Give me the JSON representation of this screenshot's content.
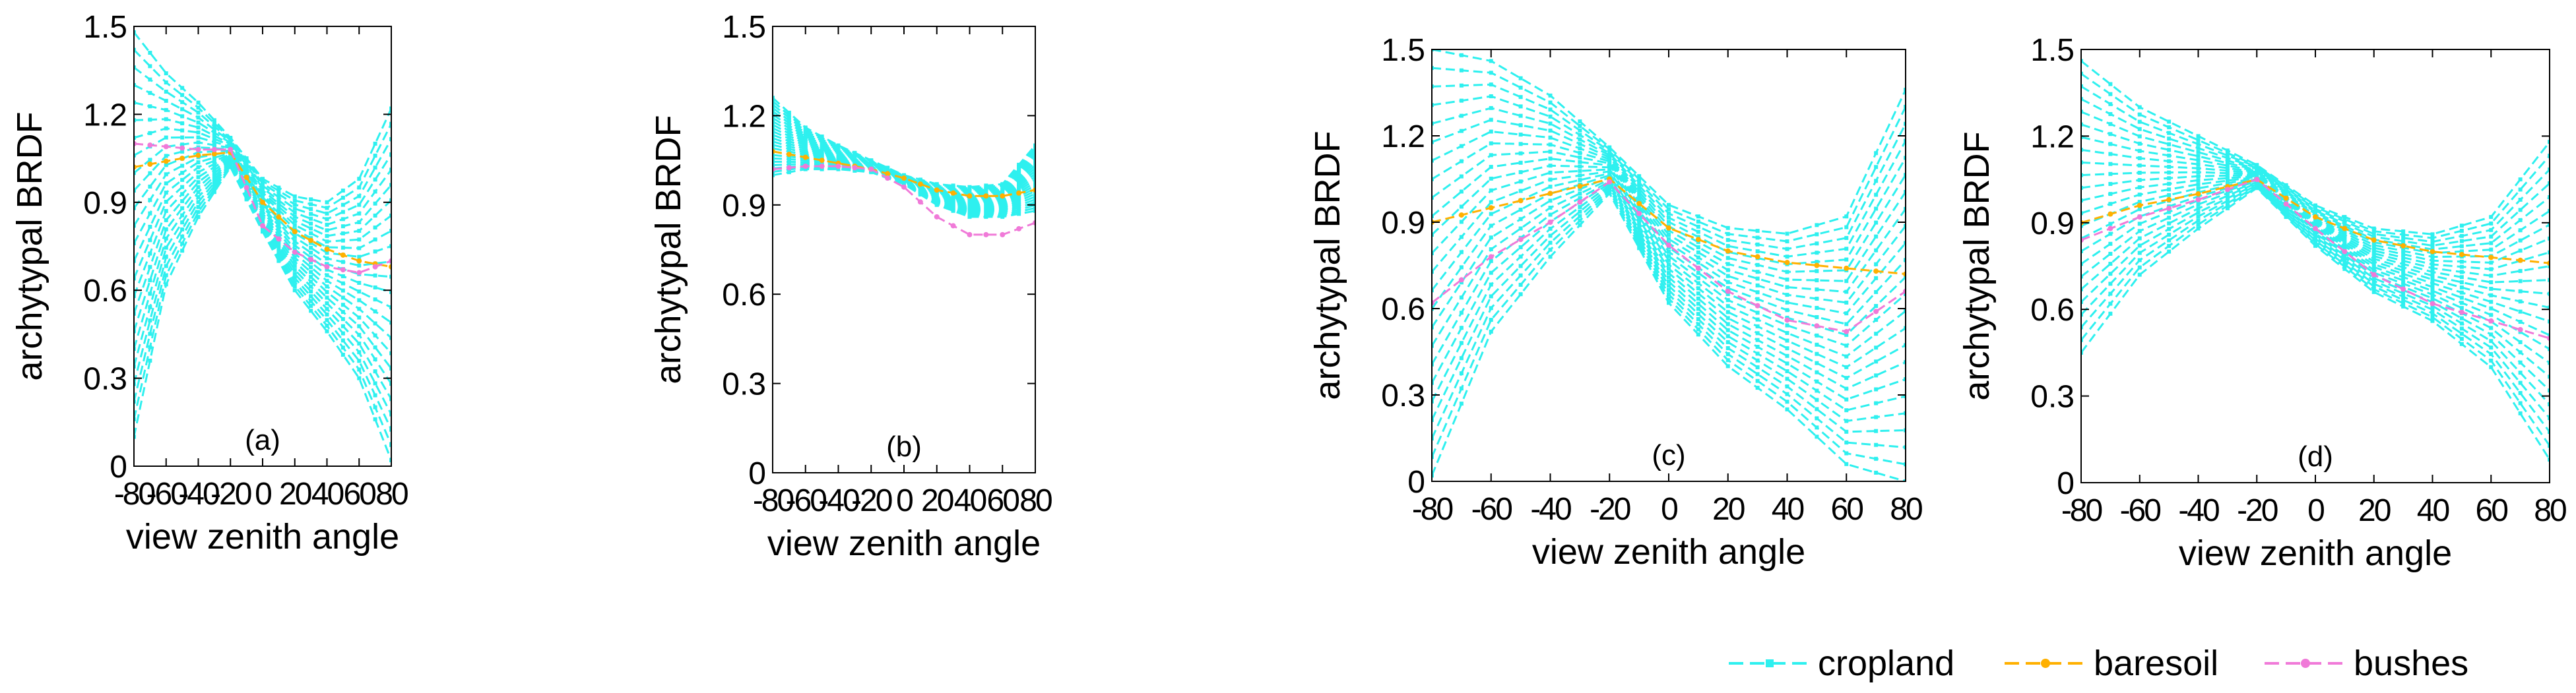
{
  "figure": {
    "legend": [
      {
        "name": "cropland",
        "color": "#2ef0ef",
        "marker": "square"
      },
      {
        "name": "baresoil",
        "color": "#ffb000",
        "marker": "dot"
      },
      {
        "name": "bushes",
        "color": "#f07ad8",
        "marker": "dot"
      }
    ]
  },
  "chart_data": [
    {
      "type": "line",
      "panel_label": "(a)",
      "xlabel": "view zenith angle",
      "ylabel": "archytypal BRDF",
      "xlim": [
        -80,
        80
      ],
      "ylim": [
        0,
        1.5
      ],
      "xticks": [
        -80,
        -60,
        -40,
        -20,
        0,
        20,
        40,
        60,
        80
      ],
      "yticks": [
        0,
        0.3,
        0.6,
        0.9,
        1.2,
        1.5
      ],
      "series": [
        {
          "name": "cropland",
          "color": "#2ef0ef",
          "envelope": {
            "x": [
              -80,
              -60,
              -40,
              -20,
              0,
              20,
              40,
              60,
              80
            ],
            "upper": [
              1.48,
              1.34,
              1.24,
              1.12,
              0.98,
              0.92,
              0.9,
              0.98,
              1.22
            ],
            "lower": [
              0.1,
              0.62,
              0.85,
              1.02,
              0.8,
              0.6,
              0.46,
              0.3,
              0.02
            ]
          },
          "lines": 24
        },
        {
          "name": "baresoil",
          "color": "#ffb000",
          "x": [
            -80,
            -60,
            -40,
            -20,
            0,
            20,
            40,
            60,
            80
          ],
          "y": [
            1.02,
            1.04,
            1.06,
            1.07,
            0.9,
            0.8,
            0.74,
            0.7,
            0.68
          ]
        },
        {
          "name": "bushes",
          "color": "#f07ad8",
          "x": [
            -80,
            -60,
            -40,
            -20,
            0,
            20,
            40,
            60,
            80
          ],
          "y": [
            1.1,
            1.09,
            1.08,
            1.08,
            0.82,
            0.73,
            0.68,
            0.66,
            0.7
          ]
        }
      ]
    },
    {
      "type": "line",
      "panel_label": "(b)",
      "xlabel": "view zenith angle",
      "ylabel": "archytypal BRDF",
      "xlim": [
        -80,
        80
      ],
      "ylim": [
        0,
        1.5
      ],
      "xticks": [
        -80,
        -60,
        -40,
        -20,
        0,
        20,
        40,
        60,
        80
      ],
      "yticks": [
        0,
        0.3,
        0.6,
        0.9,
        1.2,
        1.5
      ],
      "series": [
        {
          "name": "cropland",
          "color": "#2ef0ef",
          "envelope": {
            "x": [
              -80,
              -60,
              -40,
              -20,
              0,
              20,
              40,
              60,
              80
            ],
            "upper": [
              1.26,
              1.16,
              1.1,
              1.05,
              1.0,
              0.97,
              0.96,
              0.97,
              1.1
            ],
            "lower": [
              1.0,
              1.02,
              1.02,
              1.01,
              0.97,
              0.9,
              0.86,
              0.86,
              0.88
            ]
          },
          "lines": 24
        },
        {
          "name": "baresoil",
          "color": "#ffb000",
          "x": [
            -80,
            -60,
            -40,
            -20,
            0,
            20,
            40,
            60,
            80
          ],
          "y": [
            1.08,
            1.06,
            1.04,
            1.02,
            0.99,
            0.95,
            0.93,
            0.93,
            0.95
          ]
        },
        {
          "name": "bushes",
          "color": "#f07ad8",
          "x": [
            -80,
            -60,
            -40,
            -20,
            0,
            20,
            40,
            60,
            80
          ],
          "y": [
            1.02,
            1.03,
            1.03,
            1.02,
            0.96,
            0.86,
            0.8,
            0.8,
            0.84
          ]
        }
      ]
    },
    {
      "type": "line",
      "panel_label": "(c)",
      "xlabel": "view zenith angle",
      "ylabel": "archytypal BRDF",
      "xlim": [
        -80,
        80
      ],
      "ylim": [
        0,
        1.5
      ],
      "xticks": [
        -80,
        -60,
        -40,
        -20,
        0,
        20,
        40,
        60,
        80
      ],
      "yticks": [
        0,
        0.3,
        0.6,
        0.9,
        1.2,
        1.5
      ],
      "series": [
        {
          "name": "cropland",
          "color": "#2ef0ef",
          "envelope": {
            "x": [
              -80,
              -60,
              -40,
              -20,
              0,
              20,
              40,
              60,
              80
            ],
            "upper": [
              1.5,
              1.46,
              1.34,
              1.16,
              0.96,
              0.88,
              0.86,
              0.92,
              1.36
            ],
            "lower": [
              0.02,
              0.52,
              0.78,
              1.0,
              0.62,
              0.4,
              0.25,
              0.06,
              0.0
            ]
          },
          "lines": 24
        },
        {
          "name": "baresoil",
          "color": "#ffb000",
          "x": [
            -80,
            -60,
            -40,
            -20,
            0,
            20,
            40,
            60,
            80
          ],
          "y": [
            0.9,
            0.95,
            1.0,
            1.05,
            0.88,
            0.8,
            0.76,
            0.74,
            0.72
          ]
        },
        {
          "name": "bushes",
          "color": "#f07ad8",
          "x": [
            -80,
            -60,
            -40,
            -20,
            0,
            20,
            40,
            60,
            80
          ],
          "y": [
            0.62,
            0.78,
            0.9,
            1.04,
            0.82,
            0.66,
            0.56,
            0.52,
            0.66
          ]
        }
      ]
    },
    {
      "type": "line",
      "panel_label": "(d)",
      "xlabel": "view zenith angle",
      "ylabel": "archytypal BRDF",
      "xlim": [
        -80,
        80
      ],
      "ylim": [
        0,
        1.5
      ],
      "xticks": [
        -80,
        -60,
        -40,
        -20,
        0,
        20,
        40,
        60,
        80
      ],
      "yticks": [
        0,
        0.3,
        0.6,
        0.9,
        1.2,
        1.5
      ],
      "series": [
        {
          "name": "cropland",
          "color": "#2ef0ef",
          "envelope": {
            "x": [
              -80,
              -60,
              -40,
              -20,
              0,
              20,
              40,
              60,
              80
            ],
            "upper": [
              1.46,
              1.3,
              1.2,
              1.1,
              0.96,
              0.88,
              0.86,
              0.92,
              1.18
            ],
            "lower": [
              0.45,
              0.72,
              0.88,
              1.02,
              0.82,
              0.66,
              0.56,
              0.4,
              0.08
            ]
          },
          "lines": 24
        },
        {
          "name": "baresoil",
          "color": "#ffb000",
          "x": [
            -80,
            -60,
            -40,
            -20,
            0,
            20,
            40,
            60,
            80
          ],
          "y": [
            0.9,
            0.96,
            1.0,
            1.05,
            0.92,
            0.84,
            0.8,
            0.78,
            0.76
          ]
        },
        {
          "name": "bushes",
          "color": "#f07ad8",
          "x": [
            -80,
            -60,
            -40,
            -20,
            0,
            20,
            40,
            60,
            80
          ],
          "y": [
            0.84,
            0.92,
            0.98,
            1.05,
            0.88,
            0.72,
            0.62,
            0.56,
            0.5
          ]
        }
      ]
    }
  ]
}
